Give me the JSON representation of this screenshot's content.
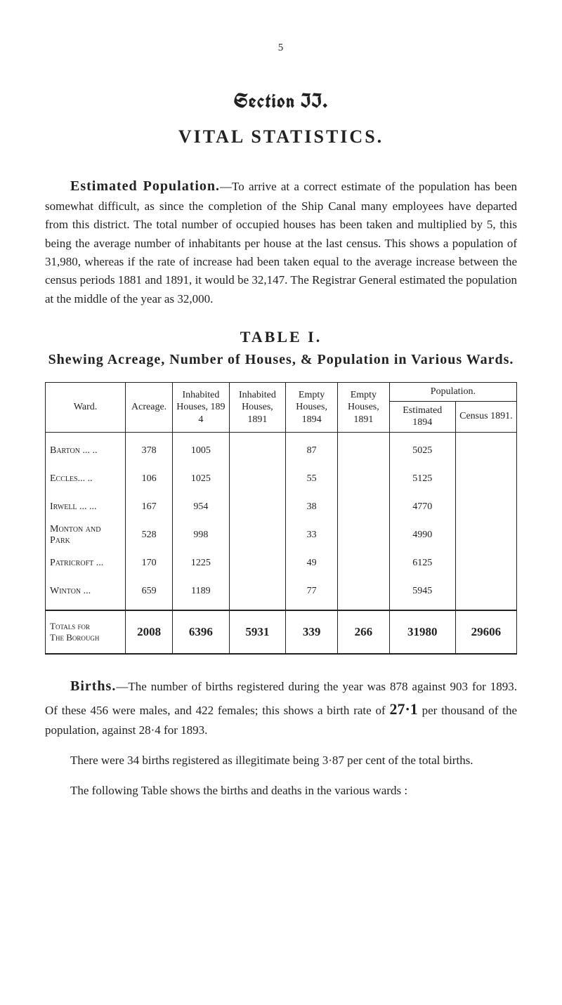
{
  "page_number": "5",
  "section_heading": "Section II.",
  "main_heading": "VITAL STATISTICS.",
  "para_estimated_population": {
    "run_in": "Estimated Population.",
    "text": "—To arrive at a correct estimate of the population has been somewhat difficult, as since the completion of the Ship Canal many employees have departed from this district. The total number of occupied houses has been taken and multiplied by 5, this being the average number of inhabitants per house at the last census. This shows a population of 31,980, whereas if the rate of increase had been taken equal to the average increase between the census periods 1881 and 1891, it would be 32,147. The Registrar General estimated the population at the middle of the year as 32,000."
  },
  "table": {
    "label": "TABLE I.",
    "caption": "Shewing Acreage, Number of Houses, & Population in Various Wards.",
    "headers": {
      "ward": "Ward.",
      "acreage": "Acreage.",
      "inhabited_1894": "Inhabited Houses, 189 4",
      "inhabited_1891": "Inhabited Houses, 1891",
      "empty_1894": "Empty Houses, 1894",
      "empty_1891": "Empty Houses, 1891",
      "population_top": "Population.",
      "estimated_1894": "Estimated 1894",
      "census_1891": "Census 1891."
    },
    "col_widths": {
      "ward": "17%",
      "acreage": "10%",
      "inh94": "12%",
      "inh91": "12%",
      "emp94": "11%",
      "emp91": "11%",
      "est94": "14%",
      "cen91": "13%"
    },
    "rows": [
      {
        "ward": "Barton ... ..",
        "acreage": "378",
        "inh94": "1005",
        "inh91": "",
        "emp94": "87",
        "emp91": "",
        "est94": "5025",
        "cen91": ""
      },
      {
        "ward": "Eccles... ..",
        "acreage": "106",
        "inh94": "1025",
        "inh91": "",
        "emp94": "55",
        "emp91": "",
        "est94": "5125",
        "cen91": ""
      },
      {
        "ward": "Irwell ... ...",
        "acreage": "167",
        "inh94": "954",
        "inh91": "",
        "emp94": "38",
        "emp91": "",
        "est94": "4770",
        "cen91": ""
      },
      {
        "ward": "Monton and Park",
        "acreage": "528",
        "inh94": "998",
        "inh91": "",
        "emp94": "33",
        "emp91": "",
        "est94": "4990",
        "cen91": ""
      },
      {
        "ward": "Patricroft ...",
        "acreage": "170",
        "inh94": "1225",
        "inh91": "",
        "emp94": "49",
        "emp91": "",
        "est94": "6125",
        "cen91": ""
      },
      {
        "ward": "Winton ...",
        "acreage": "659",
        "inh94": "1189",
        "inh91": "",
        "emp94": "77",
        "emp91": "",
        "est94": "5945",
        "cen91": ""
      }
    ],
    "totals": {
      "ward": "Totals for\nThe Borough",
      "acreage": "2008",
      "inh94": "6396",
      "inh91": "5931",
      "emp94": "339",
      "emp91": "266",
      "est94": "31980",
      "cen91": "29606"
    }
  },
  "para_births": {
    "run_in": "Births.",
    "prefix": "—The number of births registered during the year was 878 against 903 for 1893. Of these 456 were males, and 422 females; this shows a birth rate of ",
    "big_rate": "27·1",
    "suffix": " per thousand of the population, against 28·4 for 1893."
  },
  "para_illegitimate": "There were 34 births registered as illegitimate being 3·87 per cent of the total births.",
  "para_following": "The following Table shows the births and deaths in the various wards :",
  "colors": {
    "background": "#ffffff",
    "text": "#222222",
    "rule": "#222222"
  }
}
